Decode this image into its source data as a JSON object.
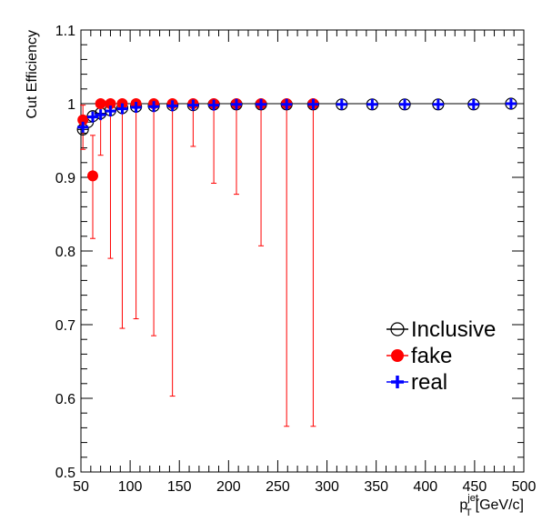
{
  "chart_data": {
    "type": "scatter",
    "title": "",
    "xlabel": {
      "main": "p",
      "sub": "T",
      "sup": "jet",
      "unit": "[GeV/c]"
    },
    "ylabel": "Cut Efficiency",
    "xlim": [
      50,
      500
    ],
    "ylim": [
      0.5,
      1.1
    ],
    "x_ticks": [
      "50",
      "100",
      "150",
      "200",
      "250",
      "300",
      "350",
      "400",
      "450",
      "500"
    ],
    "y_ticks": [
      "0.5",
      "0.6",
      "0.7",
      "0.8",
      "0.9",
      "1",
      "1.1"
    ],
    "reference_line_y": 1.0,
    "grid": false,
    "legend_position": "bottom-right",
    "series": [
      {
        "name": "Inclusive",
        "marker": "open-circle",
        "color": "#000000",
        "x": [
          52,
          57,
          62,
          70,
          80,
          92,
          106,
          124,
          143,
          164,
          185,
          208,
          233,
          259,
          286,
          315,
          346,
          379,
          413,
          449,
          487
        ],
        "y": [
          0.965,
          0.975,
          0.983,
          0.987,
          0.991,
          0.994,
          0.996,
          0.997,
          0.998,
          0.998,
          0.999,
          0.999,
          0.999,
          0.999,
          0.999,
          0.999,
          0.999,
          0.999,
          0.999,
          0.999,
          1.0
        ]
      },
      {
        "name": "fake",
        "marker": "filled-circle",
        "color": "#ff0000",
        "x": [
          52,
          62,
          70,
          80,
          92,
          106,
          124,
          143,
          164,
          185,
          208,
          233,
          259,
          286
        ],
        "y": [
          0.978,
          0.902,
          1.0,
          1.0,
          1.0,
          1.0,
          1.0,
          1.0,
          1.0,
          1.0,
          1.0,
          1.0,
          1.0,
          1.0
        ],
        "err_low": [
          0.04,
          0.085,
          0.07,
          0.21,
          0.305,
          0.292,
          0.315,
          0.397,
          0.058,
          0.108,
          0.123,
          0.193,
          0.438,
          0.438
        ],
        "err_high": [
          0.02,
          0.055,
          0.0,
          0.0,
          0.0,
          0.0,
          0.0,
          0.0,
          0.0,
          0.0,
          0.0,
          0.0,
          0.0,
          0.0
        ]
      },
      {
        "name": "real",
        "marker": "cross",
        "color": "#0000ff",
        "x": [
          52,
          62,
          70,
          80,
          92,
          106,
          124,
          143,
          164,
          185,
          208,
          233,
          259,
          286,
          315,
          346,
          379,
          413,
          449,
          487
        ],
        "y": [
          0.968,
          0.982,
          0.985,
          0.99,
          0.993,
          0.995,
          0.996,
          0.997,
          0.998,
          0.998,
          0.999,
          0.999,
          0.999,
          0.999,
          0.999,
          0.999,
          0.999,
          0.999,
          0.999,
          1.0
        ]
      }
    ]
  }
}
